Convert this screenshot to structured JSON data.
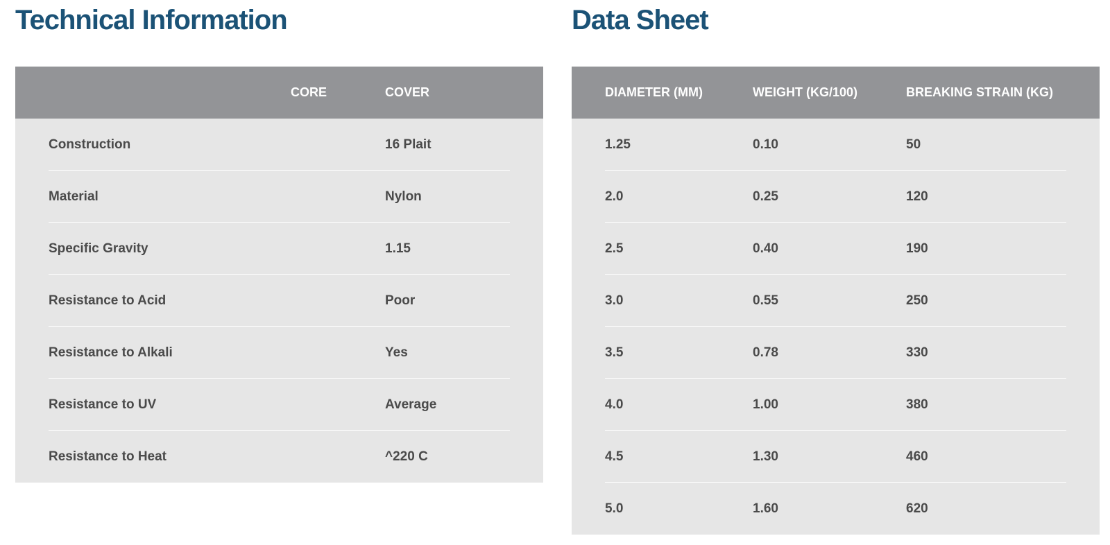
{
  "technical": {
    "title": "Technical Information",
    "headers": {
      "core": "CORE",
      "cover": "COVER"
    },
    "rows": [
      {
        "property": "Construction",
        "value": "16 Plait"
      },
      {
        "property": "Material",
        "value": "Nylon"
      },
      {
        "property": "Specific Gravity",
        "value": "1.15"
      },
      {
        "property": "Resistance to Acid",
        "value": "Poor"
      },
      {
        "property": "Resistance to Alkali",
        "value": "Yes"
      },
      {
        "property": "Resistance to UV",
        "value": "Average"
      },
      {
        "property": "Resistance to Heat",
        "value": "^220 C"
      }
    ]
  },
  "datasheet": {
    "title": "Data Sheet",
    "headers": [
      "DIAMETER (MM)",
      "WEIGHT (KG/100)",
      "BREAKING STRAIN (KG)"
    ],
    "rows": [
      [
        "1.25",
        "0.10",
        "50"
      ],
      [
        "2.0",
        "0.25",
        "120"
      ],
      [
        "2.5",
        "0.40",
        "190"
      ],
      [
        "3.0",
        "0.55",
        "250"
      ],
      [
        "3.5",
        "0.78",
        "330"
      ],
      [
        "4.0",
        "1.00",
        "380"
      ],
      [
        "4.5",
        "1.30",
        "460"
      ],
      [
        "5.0",
        "1.60",
        "620"
      ]
    ]
  },
  "colors": {
    "title": "#1b5276",
    "header_bg": "#939497",
    "body_bg": "#e6e6e6",
    "text": "#4a4a4a"
  }
}
